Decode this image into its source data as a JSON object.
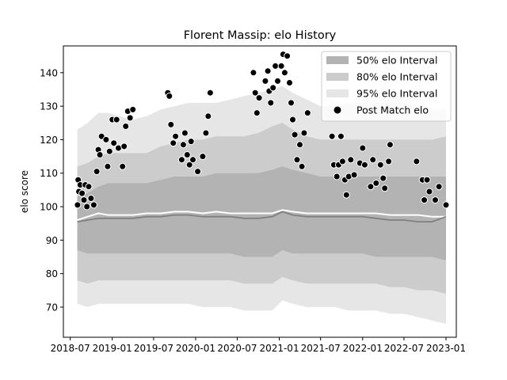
{
  "chart_data": {
    "type": "scatter",
    "title": "Florent Massip: elo History",
    "xlabel": "",
    "ylabel": "elo score",
    "xlim": [
      "2018-06-01",
      "2023-02-15"
    ],
    "ylim": [
      61,
      148
    ],
    "x_ticks": [
      "2018-07",
      "2019-01",
      "2019-07",
      "2020-01",
      "2020-07",
      "2021-01",
      "2021-07",
      "2022-01",
      "2022-07",
      "2023-01"
    ],
    "y_ticks": [
      70,
      80,
      90,
      100,
      110,
      120,
      130,
      140
    ],
    "grid": false,
    "legend_position": "top-right",
    "legend": [
      {
        "label": "50% elo Interval",
        "color": "#b3b3b3",
        "kind": "band"
      },
      {
        "label": "80% elo Interval",
        "color": "#cccccc",
        "kind": "band"
      },
      {
        "label": "95% elo Interval",
        "color": "#e6e6e6",
        "kind": "band"
      },
      {
        "label": "Post Match elo",
        "color": "#000000",
        "kind": "point"
      }
    ],
    "bands": {
      "x": [
        "2018-08-01",
        "2018-09-15",
        "2018-11-01",
        "2018-12-15",
        "2019-02-01",
        "2019-04-01",
        "2019-06-01",
        "2019-08-01",
        "2019-10-01",
        "2019-12-01",
        "2020-02-01",
        "2020-04-01",
        "2020-06-01",
        "2020-08-01",
        "2020-10-01",
        "2020-12-01",
        "2021-01-15",
        "2021-03-01",
        "2021-05-01",
        "2021-07-01",
        "2021-09-01",
        "2021-11-01",
        "2022-01-01",
        "2022-03-01",
        "2022-05-01",
        "2022-07-01",
        "2022-09-01",
        "2022-11-01",
        "2023-01-01"
      ],
      "p95_upper": [
        123,
        125,
        128,
        128,
        127,
        126,
        127,
        129,
        130,
        131,
        131,
        131,
        132,
        133,
        134,
        135,
        136,
        134,
        132,
        130,
        130,
        131,
        131,
        131,
        131,
        131,
        130,
        129,
        129
      ],
      "p95_lower": [
        71,
        70,
        71,
        71,
        71,
        71,
        71,
        71,
        71,
        71,
        70,
        70,
        70,
        69,
        69,
        69,
        72,
        71,
        70,
        70,
        70,
        69,
        69,
        69,
        68,
        68,
        67,
        66,
        65
      ],
      "p80_upper": [
        112,
        113,
        115,
        116,
        116,
        116,
        116,
        118,
        119,
        120,
        120,
        121,
        121,
        121,
        122,
        124,
        125,
        123,
        121,
        120,
        120,
        120,
        120,
        120,
        120,
        120,
        120,
        120,
        121
      ],
      "p80_lower": [
        78,
        77,
        78,
        78,
        78,
        78,
        78,
        78,
        78,
        78,
        78,
        78,
        78,
        77,
        77,
        77,
        79,
        78,
        77,
        77,
        77,
        77,
        77,
        77,
        76,
        76,
        75,
        75,
        74
      ],
      "p50_upper": [
        103,
        104,
        106,
        107,
        107,
        107,
        107,
        108,
        109,
        109,
        109,
        110,
        110,
        110,
        110,
        111,
        112,
        111,
        110,
        109,
        109,
        109,
        109,
        109,
        109,
        109,
        109,
        109,
        109
      ],
      "p50_lower": [
        87,
        86,
        86,
        86,
        86,
        86,
        86,
        86,
        86,
        86,
        86,
        86,
        86,
        85,
        85,
        85,
        87,
        86,
        86,
        86,
        86,
        86,
        86,
        85,
        85,
        85,
        85,
        85,
        84
      ],
      "mean": [
        95.5,
        96,
        96.5,
        96.5,
        96.5,
        96.5,
        97,
        97,
        97.5,
        97.5,
        97,
        97,
        97,
        96.5,
        96.5,
        97,
        98.5,
        97.5,
        97,
        97,
        97,
        97,
        97,
        96.5,
        96,
        96,
        95.5,
        95.5,
        97
      ],
      "median": [
        96,
        97,
        98,
        97.5,
        97.5,
        97.5,
        98,
        98,
        98.5,
        98.5,
        98,
        98.5,
        98,
        98,
        98,
        98,
        99,
        98.5,
        98,
        98,
        98,
        98,
        98,
        98,
        97.5,
        97.5,
        97.5,
        97,
        97
      ]
    },
    "points": [
      {
        "x": "2018-08-02",
        "y": 100.5
      },
      {
        "x": "2018-08-05",
        "y": 108
      },
      {
        "x": "2018-08-08",
        "y": 104.5
      },
      {
        "x": "2018-08-14",
        "y": 106.5
      },
      {
        "x": "2018-08-22",
        "y": 104
      },
      {
        "x": "2018-08-30",
        "y": 102
      },
      {
        "x": "2018-09-05",
        "y": 106.5
      },
      {
        "x": "2018-09-12",
        "y": 100
      },
      {
        "x": "2018-09-20",
        "y": 106
      },
      {
        "x": "2018-09-30",
        "y": 102.5
      },
      {
        "x": "2018-10-12",
        "y": 100.5
      },
      {
        "x": "2018-10-25",
        "y": 110.5
      },
      {
        "x": "2018-11-01",
        "y": 117
      },
      {
        "x": "2018-11-08",
        "y": 115.5
      },
      {
        "x": "2018-11-15",
        "y": 121
      },
      {
        "x": "2018-12-05",
        "y": 120
      },
      {
        "x": "2018-12-12",
        "y": 112
      },
      {
        "x": "2018-12-20",
        "y": 116.5
      },
      {
        "x": "2019-01-01",
        "y": 126
      },
      {
        "x": "2019-01-08",
        "y": 119
      },
      {
        "x": "2019-01-20",
        "y": 126
      },
      {
        "x": "2019-01-28",
        "y": 117.5
      },
      {
        "x": "2019-02-15",
        "y": 112
      },
      {
        "x": "2019-02-22",
        "y": 118
      },
      {
        "x": "2019-03-01",
        "y": 124
      },
      {
        "x": "2019-03-10",
        "y": 128.5
      },
      {
        "x": "2019-03-20",
        "y": 126.5
      },
      {
        "x": "2019-04-01",
        "y": 129
      },
      {
        "x": "2019-09-01",
        "y": 134
      },
      {
        "x": "2019-09-08",
        "y": 133
      },
      {
        "x": "2019-09-15",
        "y": 124.5
      },
      {
        "x": "2019-09-25",
        "y": 119
      },
      {
        "x": "2019-10-05",
        "y": 121
      },
      {
        "x": "2019-11-01",
        "y": 114
      },
      {
        "x": "2019-11-08",
        "y": 118.5
      },
      {
        "x": "2019-11-15",
        "y": 122
      },
      {
        "x": "2019-11-25",
        "y": 115.5
      },
      {
        "x": "2019-12-05",
        "y": 112.5
      },
      {
        "x": "2019-12-12",
        "y": 119.5
      },
      {
        "x": "2019-12-20",
        "y": 114
      },
      {
        "x": "2020-01-10",
        "y": 110.5
      },
      {
        "x": "2020-02-01",
        "y": 115
      },
      {
        "x": "2020-02-15",
        "y": 122
      },
      {
        "x": "2020-02-25",
        "y": 127
      },
      {
        "x": "2020-03-05",
        "y": 134
      },
      {
        "x": "2020-09-10",
        "y": 140
      },
      {
        "x": "2020-09-18",
        "y": 134
      },
      {
        "x": "2020-09-25",
        "y": 128
      },
      {
        "x": "2020-10-05",
        "y": 132.5
      },
      {
        "x": "2020-11-01",
        "y": 137.5
      },
      {
        "x": "2020-11-12",
        "y": 140.5
      },
      {
        "x": "2020-11-18",
        "y": 134.5
      },
      {
        "x": "2020-11-25",
        "y": 131
      },
      {
        "x": "2020-12-05",
        "y": 135.5
      },
      {
        "x": "2020-12-15",
        "y": 142
      },
      {
        "x": "2020-12-25",
        "y": 137.5
      },
      {
        "x": "2021-01-10",
        "y": 142
      },
      {
        "x": "2021-01-18",
        "y": 145.5
      },
      {
        "x": "2021-01-25",
        "y": 140
      },
      {
        "x": "2021-02-05",
        "y": 145
      },
      {
        "x": "2021-02-15",
        "y": 137
      },
      {
        "x": "2021-02-22",
        "y": 131
      },
      {
        "x": "2021-03-01",
        "y": 126
      },
      {
        "x": "2021-03-10",
        "y": 121.5
      },
      {
        "x": "2021-03-20",
        "y": 114
      },
      {
        "x": "2021-04-01",
        "y": 118.5
      },
      {
        "x": "2021-04-10",
        "y": 112
      },
      {
        "x": "2021-04-20",
        "y": 122
      },
      {
        "x": "2021-05-05",
        "y": 128
      },
      {
        "x": "2021-08-20",
        "y": 121
      },
      {
        "x": "2021-08-28",
        "y": 112.5
      },
      {
        "x": "2021-09-10",
        "y": 109
      },
      {
        "x": "2021-09-18",
        "y": 112.5
      },
      {
        "x": "2021-09-28",
        "y": 121
      },
      {
        "x": "2021-10-05",
        "y": 113.5
      },
      {
        "x": "2021-10-15",
        "y": 108
      },
      {
        "x": "2021-10-22",
        "y": 103.5
      },
      {
        "x": "2021-11-01",
        "y": 109
      },
      {
        "x": "2021-11-10",
        "y": 114
      },
      {
        "x": "2021-11-25",
        "y": 109.5
      },
      {
        "x": "2021-12-20",
        "y": 113
      },
      {
        "x": "2022-01-01",
        "y": 117.5
      },
      {
        "x": "2022-01-10",
        "y": 112.5
      },
      {
        "x": "2022-02-05",
        "y": 106
      },
      {
        "x": "2022-02-15",
        "y": 114
      },
      {
        "x": "2022-03-01",
        "y": 107
      },
      {
        "x": "2022-03-20",
        "y": 112.5
      },
      {
        "x": "2022-04-01",
        "y": 108.5
      },
      {
        "x": "2022-04-08",
        "y": 105.5
      },
      {
        "x": "2022-04-25",
        "y": 113.5
      },
      {
        "x": "2022-05-01",
        "y": 118.5
      },
      {
        "x": "2022-08-25",
        "y": 113.5
      },
      {
        "x": "2022-09-20",
        "y": 108
      },
      {
        "x": "2022-09-28",
        "y": 102
      },
      {
        "x": "2022-10-10",
        "y": 108
      },
      {
        "x": "2022-10-20",
        "y": 104.5
      },
      {
        "x": "2022-11-15",
        "y": 102
      },
      {
        "x": "2022-12-01",
        "y": 106
      },
      {
        "x": "2023-01-01",
        "y": 100.5
      }
    ]
  }
}
